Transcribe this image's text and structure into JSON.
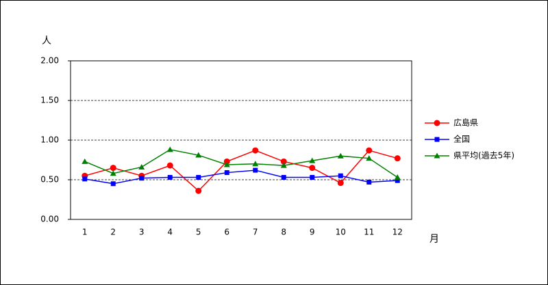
{
  "chart_data": {
    "type": "line",
    "y_label": "人",
    "x_label": "月",
    "categories": [
      "1",
      "2",
      "3",
      "4",
      "5",
      "6",
      "7",
      "8",
      "9",
      "10",
      "11",
      "12"
    ],
    "series": [
      {
        "name": "広島県",
        "color": "#ff0000",
        "marker": "circle",
        "values": [
          0.55,
          0.65,
          0.55,
          0.68,
          0.36,
          0.73,
          0.87,
          0.73,
          0.65,
          0.46,
          0.87,
          0.77
        ]
      },
      {
        "name": "全国",
        "color": "#0000ff",
        "marker": "square",
        "values": [
          0.51,
          0.45,
          0.52,
          0.53,
          0.53,
          0.59,
          0.62,
          0.53,
          0.53,
          0.55,
          0.47,
          0.49
        ]
      },
      {
        "name": "県平均(過去5年)",
        "color": "#008000",
        "marker": "triangle",
        "values": [
          0.73,
          0.58,
          0.66,
          0.88,
          0.81,
          0.69,
          0.7,
          0.68,
          0.74,
          0.8,
          0.77,
          0.53
        ]
      }
    ],
    "ylim": [
      0,
      2
    ],
    "yticks": [
      {
        "value": 0,
        "label": "0.00"
      },
      {
        "value": 0.5,
        "label": "0.50"
      },
      {
        "value": 1,
        "label": "1.00"
      },
      {
        "value": 1.5,
        "label": "1.50"
      },
      {
        "value": 2,
        "label": "2.00"
      }
    ],
    "grid": true,
    "legend": "right"
  }
}
